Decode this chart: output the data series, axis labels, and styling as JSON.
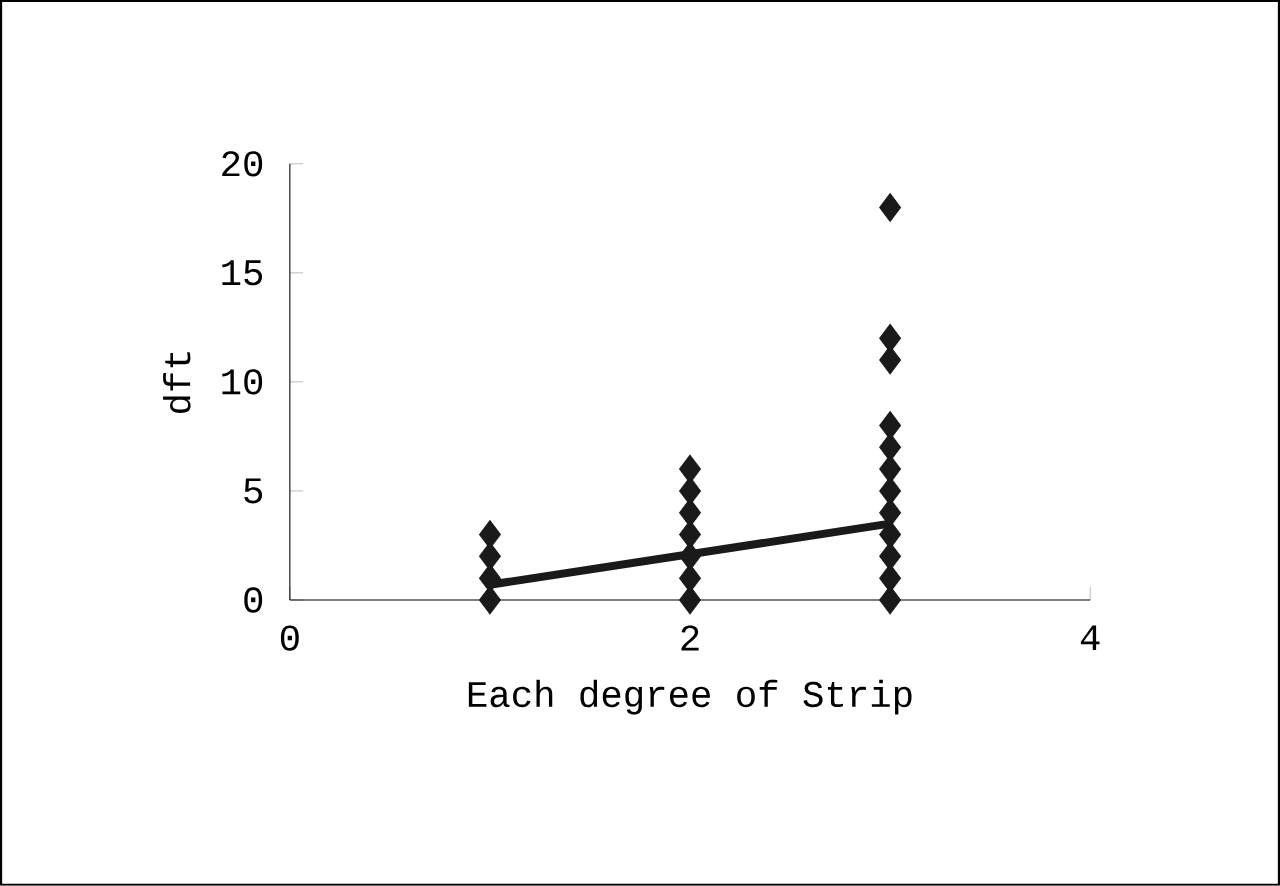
{
  "chart_data": {
    "type": "scatter",
    "xlabel": "Each degree of Strip",
    "ylabel": "dft",
    "xlim": [
      0,
      4
    ],
    "xticks": [
      0,
      2,
      4
    ],
    "ylim": [
      0,
      20
    ],
    "yticks": [
      0,
      5,
      10,
      15,
      20
    ],
    "grid": false,
    "marker": "diamond",
    "series": [
      {
        "color": "#1a1a1a",
        "x": [
          1,
          1,
          1,
          1,
          2,
          2,
          2,
          2,
          2,
          2,
          2,
          3,
          3,
          3,
          3,
          3,
          3,
          3,
          3,
          3,
          3,
          3,
          3
        ],
        "values": [
          0,
          1,
          2,
          3,
          0,
          1,
          2,
          3,
          4,
          5,
          6,
          0,
          1,
          2,
          3,
          4,
          5,
          6,
          7,
          8,
          11,
          12,
          18
        ]
      },
      {
        "type": "line",
        "color": "#1a1a1a",
        "marker": "none",
        "x": [
          1,
          3
        ],
        "values": [
          0.7,
          3.5
        ]
      }
    ]
  }
}
